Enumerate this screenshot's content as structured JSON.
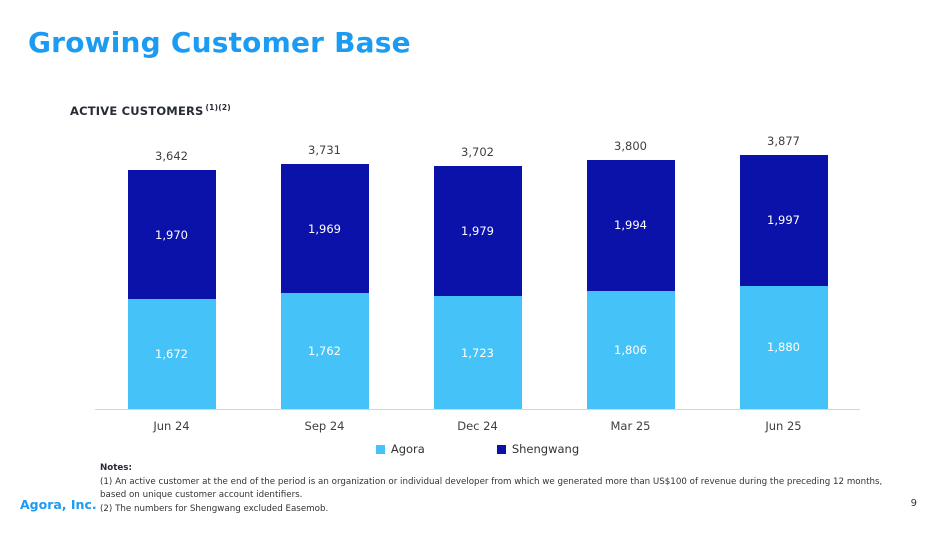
{
  "page": {
    "title": "Growing Customer Base",
    "footer_brand": "Agora, Inc.",
    "page_number": "9"
  },
  "chart_header": {
    "title": "ACTIVE CUSTOMERS",
    "superscript": "(1)(2)"
  },
  "colors": {
    "title_blue": "#1B9CF2",
    "agora_light_blue": "#45C2F8",
    "shengwang_dark_blue": "#0B12AA",
    "axis_gray": "#D6D6D6",
    "label_gray": "#404040"
  },
  "chart_data": {
    "type": "bar",
    "stacked": true,
    "title": "ACTIVE CUSTOMERS (1)(2)",
    "categories": [
      "Jun 24",
      "Sep 24",
      "Dec 24",
      "Mar 25",
      "Jun 25"
    ],
    "series": [
      {
        "name": "Agora",
        "color": "#45C2F8",
        "values": [
          1672,
          1762,
          1723,
          1806,
          1880
        ]
      },
      {
        "name": "Shengwang",
        "color": "#0B12AA",
        "values": [
          1970,
          1969,
          1979,
          1994,
          1997
        ]
      }
    ],
    "totals": [
      3642,
      3731,
      3702,
      3800,
      3877
    ],
    "xlabel": "",
    "ylabel": "",
    "ylim": [
      0,
      4000
    ],
    "grid": false,
    "legend_position": "bottom",
    "data_labels": "inside-white, totals-above"
  },
  "notes": {
    "heading": "Notes:",
    "items": [
      "(1) An active customer at the end of the period is an organization or individual developer from which we generated more than US$100 of revenue during the preceding 12 months, based on unique customer account identifiers.",
      "(2) The numbers for Shengwang excluded Easemob."
    ]
  }
}
